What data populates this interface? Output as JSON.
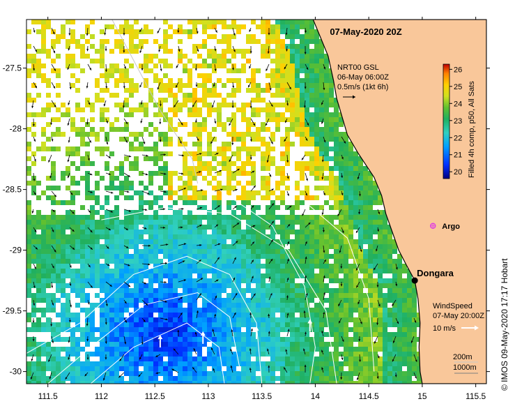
{
  "map": {
    "title": "07-May-2020 20Z",
    "credit": "© IMOS 09-May-2020 17:17 Hobart",
    "axes": {
      "lon_ticks": [
        "111.5",
        "112",
        "112.5",
        "113",
        "113.5",
        "14",
        "114.5",
        "15",
        "115.5"
      ],
      "lat_ticks": [
        "-27.5",
        "-28",
        "-28.5",
        "-29",
        "-29.5",
        "-30"
      ],
      "lon_range": [
        111.3,
        115.6
      ],
      "lat_range": [
        -27.1,
        -30.1
      ]
    },
    "current_legend": {
      "line1": "NRT00 GSL",
      "line2": "06-May 06:00Z",
      "line3": "0.5m/s (1kt 6h)"
    },
    "wind_legend": {
      "line1": "WindSpeed",
      "line2": "07-May 20:00Z",
      "line3": "10 m/s"
    },
    "bathy_legend": {
      "line1": "200m",
      "line2": "1000m"
    },
    "colorbar": {
      "title": "Filled 4h comp, p50, All Sats",
      "ticks": [
        "26",
        "25",
        "24",
        "23",
        "22",
        "21",
        "20"
      ],
      "range": [
        19.6,
        26.3
      ]
    },
    "places": [
      {
        "name": "Dongara",
        "lon": 114.93,
        "lat": -29.25
      }
    ],
    "argo": {
      "name": "Argo",
      "lon": 115.1,
      "lat": -28.8
    },
    "colors": {
      "land": "#f9c79a",
      "coast": "#000000",
      "contour": "#ffffff",
      "bathy200": "#c8c8c8",
      "argo": "#e040e0"
    }
  }
}
